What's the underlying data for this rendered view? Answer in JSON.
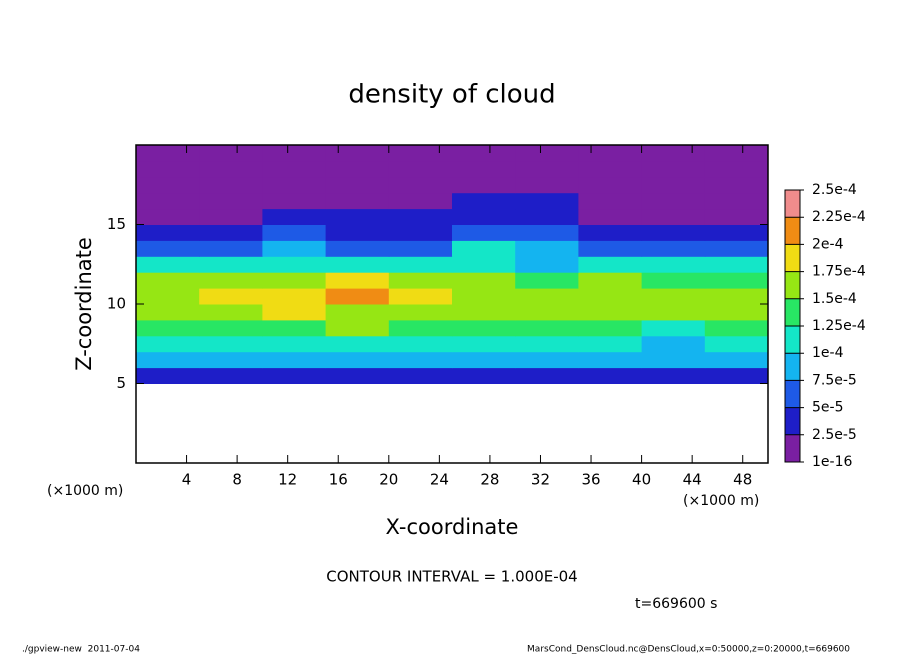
{
  "chart_data": {
    "type": "heatmap",
    "title": "density of cloud",
    "xlabel": "X-coordinate",
    "ylabel": "Z-coordinate",
    "x_unit": "(×1000 m)",
    "xlim": [
      0,
      50
    ],
    "xticks": [
      4,
      8,
      12,
      16,
      20,
      24,
      28,
      32,
      36,
      40,
      44,
      48
    ],
    "ylim": [
      0,
      20
    ],
    "yticks": [
      5,
      10,
      15
    ],
    "x_edges": [
      0,
      5,
      10,
      15,
      20,
      25,
      30,
      35,
      40,
      45,
      50
    ],
    "y_edges": [
      5,
      6,
      7,
      8,
      9,
      10,
      11,
      12,
      13,
      14,
      15,
      16,
      17,
      18,
      19,
      20
    ],
    "values": [
      [
        3e-05,
        3e-05,
        3e-05,
        3e-05,
        3e-05,
        4e-05,
        3e-05,
        3e-05,
        3e-05,
        3e-05
      ],
      [
        8e-05,
        8e-05,
        8e-05,
        8e-05,
        8e-05,
        8e-05,
        9e-05,
        8e-05,
        9e-05,
        8e-05
      ],
      [
        0.00011,
        0.00012,
        0.00011,
        0.00012,
        0.00011,
        0.0001,
        0.00011,
        0.00011,
        9e-05,
        0.00011
      ],
      [
        0.00014,
        0.00014,
        0.00014,
        0.00015,
        0.00014,
        0.00013,
        0.00013,
        0.00013,
        0.00012,
        0.00013
      ],
      [
        0.00016,
        0.00017,
        0.00018,
        0.00017,
        0.00016,
        0.00015,
        0.00015,
        0.00016,
        0.00015,
        0.00015
      ],
      [
        0.00017,
        0.00018,
        0.00019,
        0.0002,
        0.00018,
        0.00016,
        0.00016,
        0.00017,
        0.00016,
        0.00016
      ],
      [
        0.00015,
        0.00016,
        0.00017,
        0.00018,
        0.00016,
        0.00015,
        0.00014,
        0.00015,
        0.00014,
        0.00014
      ],
      [
        0.0001,
        0.00011,
        0.00012,
        0.00012,
        0.00011,
        0.00011,
        9e-05,
        0.0001,
        0.0001,
        0.0001
      ],
      [
        7e-05,
        7e-05,
        8e-05,
        7e-05,
        7e-05,
        0.0001,
        8e-05,
        6e-05,
        7e-05,
        7e-05
      ],
      [
        4e-05,
        4e-05,
        5e-05,
        4e-05,
        4e-05,
        6e-05,
        6e-05,
        3e-05,
        4e-05,
        4e-05
      ],
      [
        2e-05,
        2e-05,
        3e-05,
        3e-05,
        3e-05,
        4e-05,
        4e-05,
        2e-05,
        2e-05,
        2e-05
      ],
      [
        2e-05,
        2e-05,
        2e-05,
        2e-05,
        2e-05,
        3e-05,
        3e-05,
        2e-05,
        2e-05,
        2e-05
      ],
      [
        1e-05,
        1e-05,
        1e-05,
        1e-05,
        1e-05,
        2e-05,
        2e-05,
        1e-05,
        1e-05,
        1e-05
      ],
      [
        1e-05,
        1e-05,
        1e-05,
        1e-05,
        1e-05,
        1e-05,
        1e-05,
        1e-05,
        1e-05,
        1e-05
      ],
      [
        1e-05,
        1e-05,
        1e-05,
        1e-05,
        1e-05,
        1e-05,
        1e-05,
        1e-05,
        1e-05,
        1e-05
      ]
    ],
    "colorbar": {
      "ticks": [
        {
          "value": 1e-16,
          "label": "1e-16"
        },
        {
          "value": 2.5e-05,
          "label": "2.5e-5"
        },
        {
          "value": 5e-05,
          "label": "5e-5"
        },
        {
          "value": 7.5e-05,
          "label": "7.5e-5"
        },
        {
          "value": 0.0001,
          "label": "1e-4"
        },
        {
          "value": 0.000125,
          "label": "1.25e-4"
        },
        {
          "value": 0.00015,
          "label": "1.5e-4"
        },
        {
          "value": 0.000175,
          "label": "1.75e-4"
        },
        {
          "value": 0.0002,
          "label": "2e-4"
        },
        {
          "value": 0.000225,
          "label": "2.25e-4"
        },
        {
          "value": 0.00025,
          "label": "2.5e-4"
        }
      ],
      "colors": [
        "#7a1fa2",
        "#1e1ec8",
        "#1e5ae6",
        "#14b4f0",
        "#14e6c8",
        "#28e664",
        "#96e614",
        "#f0dc14",
        "#f08c14",
        "#f08c8c"
      ]
    },
    "annotation": "CONTOUR INTERVAL = 1.000E-04",
    "time_label": "t=669600 s"
  },
  "footer": {
    "left": "./gpview-new  2011-07-04",
    "right": "MarsCond_DensCloud.nc@DensCloud,x=0:50000,z=0:20000,t=669600"
  }
}
